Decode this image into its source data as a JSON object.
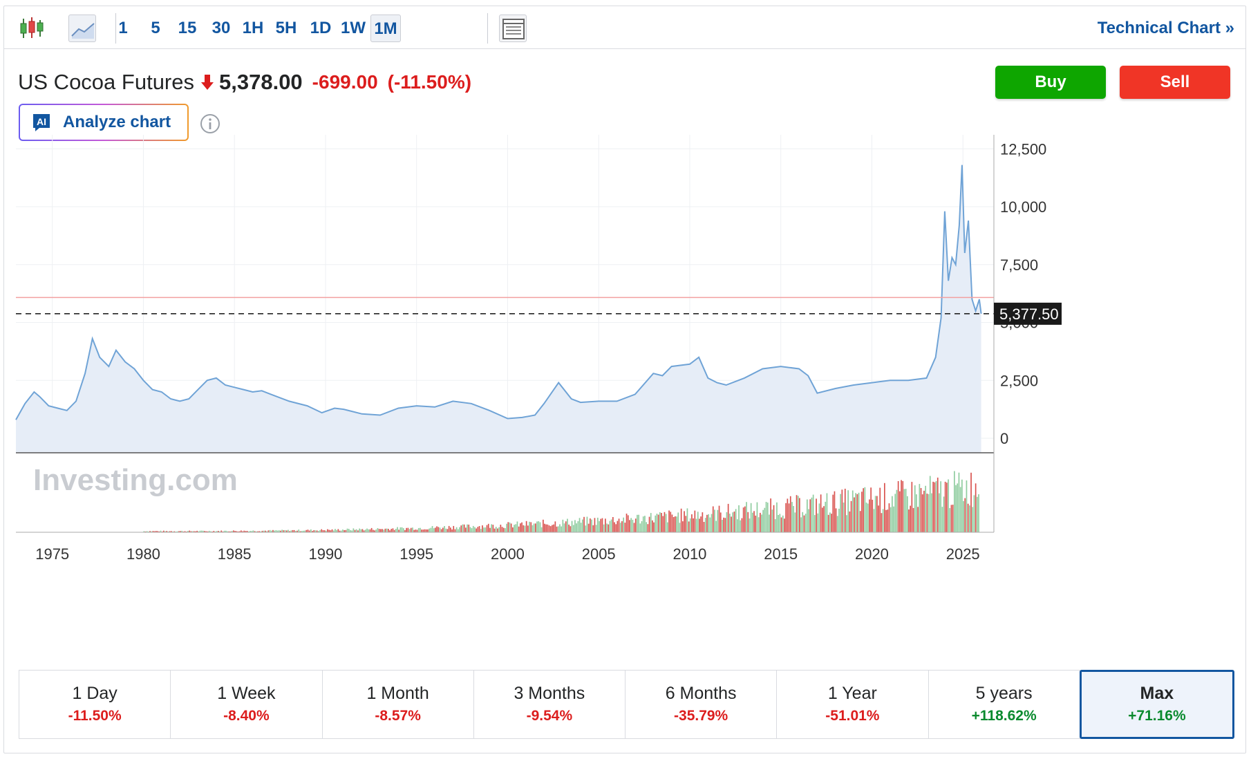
{
  "toolbar": {
    "intervals": [
      "1",
      "5",
      "15",
      "30",
      "1H",
      "5H",
      "1D",
      "1W",
      "1M"
    ],
    "active_interval": "1M",
    "technical_chart_label": "Technical Chart »"
  },
  "header": {
    "instrument": "US Cocoa Futures",
    "price": "5,378.00",
    "change": "-699.00",
    "change_pct": "(-11.50%)",
    "buy_label": "Buy",
    "sell_label": "Sell",
    "analyze_label": "Analyze chart",
    "ai_badge": "AI"
  },
  "colors": {
    "line": "#6fa3d6",
    "area": "#e6edf7",
    "up_volume": "#8fcc9f",
    "down_volume": "#d9534f",
    "negative": "#dc1d1d",
    "positive": "#0a8a2e",
    "accent": "#1256a0"
  },
  "watermark": "Investing.com",
  "chart_data": {
    "type": "area",
    "x_ticks": [
      1975,
      1980,
      1985,
      1990,
      1995,
      2000,
      2005,
      2010,
      2015,
      2020,
      2025
    ],
    "y_ticks": [
      "0",
      "2,500",
      "5,000",
      "7,500",
      "10,000",
      "12,500"
    ],
    "ylim": [
      0,
      12500
    ],
    "last_value_label": "5,377.50",
    "last_value": 5377.5,
    "reference_line_value": 6077,
    "grid": true,
    "series": [
      {
        "x": [
          1973.0,
          1973.5,
          1974.0,
          1974.3,
          1974.8,
          1975.3,
          1975.8,
          1976.3,
          1976.8,
          1977.2,
          1977.6,
          1978.1,
          1978.5,
          1979.0,
          1979.5,
          1980.0,
          1980.5,
          1981.0,
          1981.5,
          1982.0,
          1982.5,
          1983.0,
          1983.5,
          1984.0,
          1984.5,
          1985.0,
          1985.5,
          1986.0,
          1986.5,
          1987.0,
          1988.0,
          1989.0,
          1989.8,
          1990.5,
          1991.0,
          1992.0,
          1993.0,
          1994.0,
          1995.0,
          1996.0,
          1997.0,
          1998.0,
          1999.0,
          2000.0,
          2000.8,
          2001.5,
          2002.0,
          2002.8,
          2003.5,
          2004.0,
          2005.0,
          2006.0,
          2007.0,
          2008.0,
          2008.5,
          2009.0,
          2010.0,
          2010.5,
          2011.0,
          2011.5,
          2012.0,
          2013.0,
          2014.0,
          2015.0,
          2016.0,
          2016.5,
          2017.0,
          2018.0,
          2019.0,
          2020.0,
          2021.0,
          2022.0,
          2023.0,
          2023.5,
          2023.8,
          2024.0,
          2024.2,
          2024.4,
          2024.6,
          2024.8,
          2024.95,
          2025.1,
          2025.3,
          2025.5,
          2025.7,
          2025.9,
          2026.0
        ],
        "values": [
          800,
          1500,
          2000,
          1800,
          1400,
          1300,
          1200,
          1600,
          2800,
          4300,
          3500,
          3100,
          3800,
          3300,
          3000,
          2500,
          2100,
          2000,
          1700,
          1600,
          1700,
          2100,
          2500,
          2600,
          2300,
          2200,
          2100,
          2000,
          2050,
          1900,
          1600,
          1400,
          1100,
          1300,
          1250,
          1050,
          1000,
          1300,
          1400,
          1350,
          1600,
          1500,
          1200,
          850,
          900,
          1000,
          1500,
          2400,
          1700,
          1550,
          1600,
          1600,
          1900,
          2800,
          2700,
          3100,
          3200,
          3500,
          2600,
          2400,
          2300,
          2600,
          3000,
          3100,
          3000,
          2700,
          1950,
          2150,
          2300,
          2400,
          2500,
          2500,
          2600,
          3500,
          5200,
          9800,
          6800,
          7800,
          7500,
          9200,
          11800,
          8000,
          9400,
          6000,
          5500,
          6000,
          5377.5
        ]
      }
    ],
    "volume": {
      "start": 1980.0,
      "end": 2025.9,
      "max_year_value": 2023.8
    },
    "period_changes": [
      {
        "label": "1 Day",
        "value": "-11.50%"
      },
      {
        "label": "1 Week",
        "value": "-8.40%"
      },
      {
        "label": "1 Month",
        "value": "-8.57%"
      },
      {
        "label": "3 Months",
        "value": "-9.54%"
      },
      {
        "label": "6 Months",
        "value": "-35.79%"
      },
      {
        "label": "1 Year",
        "value": "-51.01%"
      },
      {
        "label": "5 years",
        "value": "+118.62%"
      },
      {
        "label": "Max",
        "value": "+71.16%"
      }
    ],
    "active_period": "Max"
  }
}
